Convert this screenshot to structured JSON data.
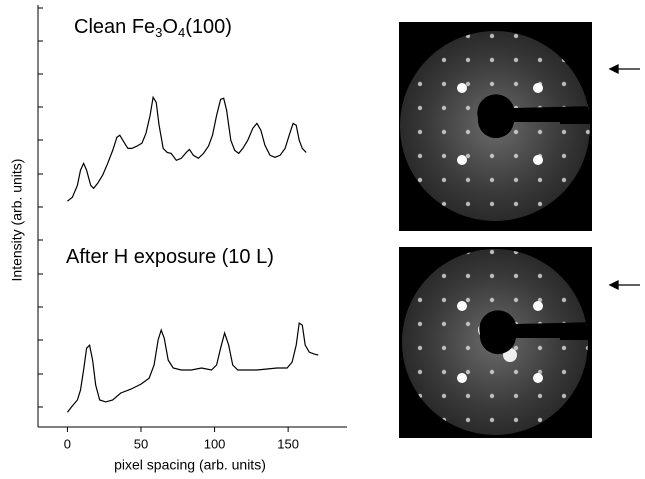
{
  "chart_data": {
    "type": "line",
    "x_label": "pixel spacing (arb. units)",
    "y_label": "Intensity (arb. units)",
    "annotations": [
      {
        "parts": [
          "Clean Fe",
          "3",
          "O",
          "4",
          "(100)"
        ]
      },
      {
        "parts": [
          "After H  exposure (10 L)"
        ]
      }
    ],
    "xlim": [
      -20,
      190
    ],
    "xticks": [
      0,
      50,
      100,
      150
    ],
    "ylim": [
      0,
      12.8
    ],
    "series": [
      {
        "color": "#000000",
        "x": [
          0,
          3.4,
          6.8,
          8.9,
          11,
          13,
          15.8,
          17.8,
          20.5,
          24,
          27.4,
          30.8,
          33.6,
          35.6,
          38.4,
          41.1,
          43.8,
          47.3,
          50.7,
          53.4,
          56.2,
          58.2,
          60.3,
          62.3,
          65.1,
          67.8,
          70.5,
          74,
          77.4,
          80.8,
          82.9,
          85.6,
          89,
          92.5,
          95.9,
          98.6,
          101.4,
          104.1,
          106.2,
          108.2,
          111,
          113.7,
          116.4,
          119.2,
          122.6,
          126,
          128.8,
          131.5,
          134.2,
          137.7,
          141.1,
          144.5,
          147.9,
          150.7,
          153.4,
          155.5,
          157.5,
          159.6,
          162.3
        ],
        "values": [
          6.85,
          6.97,
          7.33,
          7.79,
          8.0,
          7.79,
          7.33,
          7.24,
          7.39,
          7.64,
          8.0,
          8.39,
          8.79,
          8.85,
          8.64,
          8.45,
          8.45,
          8.52,
          8.61,
          8.91,
          9.45,
          10.0,
          9.85,
          9.15,
          8.45,
          8.33,
          8.3,
          8.09,
          8.15,
          8.33,
          8.42,
          8.24,
          8.15,
          8.3,
          8.52,
          8.85,
          9.45,
          9.94,
          9.97,
          9.61,
          8.7,
          8.39,
          8.3,
          8.45,
          8.7,
          9.06,
          9.21,
          9.0,
          8.55,
          8.24,
          8.18,
          8.24,
          8.45,
          8.85,
          9.21,
          9.15,
          8.7,
          8.45,
          8.33
        ]
      },
      {
        "color": "#000000",
        "x": [
          0,
          3.4,
          6.8,
          8.9,
          11,
          13,
          15.1,
          17.1,
          19.2,
          21.9,
          26,
          30.8,
          36.3,
          43.2,
          50,
          55.5,
          58.9,
          61.6,
          63.7,
          65.8,
          68.5,
          71.9,
          77.4,
          84.2,
          91.1,
          97.9,
          101.4,
          104.1,
          106.8,
          109.6,
          112.3,
          115.8,
          121.9,
          128.8,
          135.6,
          142.5,
          149.3,
          152.7,
          155.5,
          157.5,
          159.6,
          161.6,
          164.4,
          167.8,
          170.5
        ],
        "values": [
          0.45,
          0.64,
          0.82,
          1.12,
          1.73,
          2.39,
          2.48,
          2.03,
          1.27,
          0.82,
          0.76,
          0.82,
          1.03,
          1.15,
          1.3,
          1.48,
          1.88,
          2.64,
          2.94,
          2.7,
          2.03,
          1.79,
          1.73,
          1.73,
          1.79,
          1.73,
          1.88,
          2.39,
          2.85,
          2.48,
          1.88,
          1.73,
          1.73,
          1.73,
          1.76,
          1.79,
          1.79,
          1.97,
          2.48,
          3.15,
          3.09,
          2.48,
          2.27,
          2.21,
          2.18
        ]
      }
    ]
  }
}
